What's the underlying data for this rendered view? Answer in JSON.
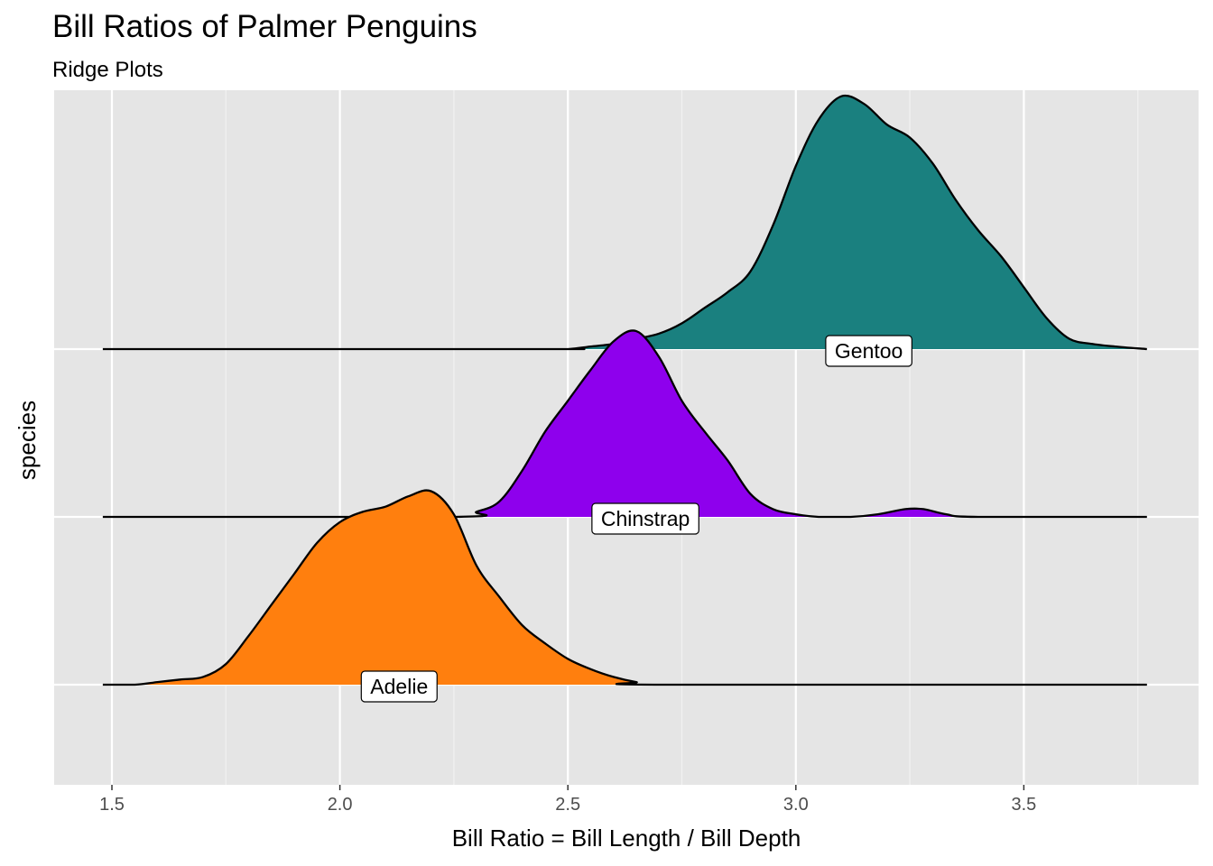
{
  "chart_data": {
    "type": "ridgeline",
    "title": "Bill Ratios of Palmer Penguins",
    "subtitle": "Ridge Plots",
    "xlabel": "Bill Ratio = Bill Length / Bill Depth",
    "ylabel": "species",
    "xlim": [
      1.37,
      3.89
    ],
    "x_ticks": [
      "1.5",
      "2.0",
      "2.5",
      "3.0",
      "3.5"
    ],
    "x_tick_values": [
      1.5,
      2.0,
      2.5,
      3.0,
      3.5
    ],
    "grid": true,
    "background": "#e5e5e5",
    "categories": [
      "Adelie",
      "Chinstrap",
      "Gentoo"
    ],
    "series": [
      {
        "name": "Adelie",
        "color": "#ff7f0e",
        "points": [
          [
            1.48,
            0.0
          ],
          [
            1.55,
            0.0
          ],
          [
            1.6,
            0.01
          ],
          [
            1.65,
            0.02
          ],
          [
            1.7,
            0.03
          ],
          [
            1.75,
            0.08
          ],
          [
            1.8,
            0.19
          ],
          [
            1.85,
            0.31
          ],
          [
            1.9,
            0.43
          ],
          [
            1.95,
            0.55
          ],
          [
            2.0,
            0.63
          ],
          [
            2.05,
            0.67
          ],
          [
            2.1,
            0.69
          ],
          [
            2.15,
            0.73
          ],
          [
            2.2,
            0.75
          ],
          [
            2.25,
            0.66
          ],
          [
            2.3,
            0.46
          ],
          [
            2.35,
            0.34
          ],
          [
            2.4,
            0.23
          ],
          [
            2.45,
            0.16
          ],
          [
            2.5,
            0.1
          ],
          [
            2.55,
            0.06
          ],
          [
            2.6,
            0.03
          ],
          [
            2.65,
            0.01
          ],
          [
            2.7,
            0.0
          ],
          [
            3.77,
            0.0
          ]
        ]
      },
      {
        "name": "Chinstrap",
        "color": "#8e00ed",
        "points": [
          [
            1.48,
            0.0
          ],
          [
            2.25,
            0.0
          ],
          [
            2.3,
            0.02
          ],
          [
            2.35,
            0.06
          ],
          [
            2.4,
            0.18
          ],
          [
            2.45,
            0.33
          ],
          [
            2.5,
            0.45
          ],
          [
            2.55,
            0.57
          ],
          [
            2.6,
            0.68
          ],
          [
            2.65,
            0.72
          ],
          [
            2.7,
            0.62
          ],
          [
            2.75,
            0.45
          ],
          [
            2.8,
            0.33
          ],
          [
            2.85,
            0.22
          ],
          [
            2.9,
            0.09
          ],
          [
            2.95,
            0.03
          ],
          [
            3.0,
            0.01
          ],
          [
            3.05,
            0.0
          ],
          [
            3.12,
            0.0
          ],
          [
            3.18,
            0.01
          ],
          [
            3.24,
            0.03
          ],
          [
            3.28,
            0.03
          ],
          [
            3.33,
            0.01
          ],
          [
            3.4,
            0.0
          ],
          [
            3.77,
            0.0
          ]
        ]
      },
      {
        "name": "Gentoo",
        "color": "#1a807f",
        "points": [
          [
            1.48,
            0.0
          ],
          [
            2.45,
            0.0
          ],
          [
            2.5,
            0.0
          ],
          [
            2.55,
            0.01
          ],
          [
            2.6,
            0.02
          ],
          [
            2.65,
            0.04
          ],
          [
            2.7,
            0.06
          ],
          [
            2.75,
            0.1
          ],
          [
            2.8,
            0.16
          ],
          [
            2.85,
            0.22
          ],
          [
            2.9,
            0.3
          ],
          [
            2.95,
            0.48
          ],
          [
            3.0,
            0.71
          ],
          [
            3.05,
            0.89
          ],
          [
            3.1,
            0.98
          ],
          [
            3.15,
            0.95
          ],
          [
            3.2,
            0.87
          ],
          [
            3.25,
            0.82
          ],
          [
            3.3,
            0.72
          ],
          [
            3.35,
            0.58
          ],
          [
            3.4,
            0.46
          ],
          [
            3.45,
            0.36
          ],
          [
            3.5,
            0.24
          ],
          [
            3.55,
            0.12
          ],
          [
            3.6,
            0.04
          ],
          [
            3.65,
            0.02
          ],
          [
            3.7,
            0.01
          ],
          [
            3.77,
            0.0
          ]
        ]
      }
    ],
    "labels": [
      {
        "text": "Adelie",
        "x": 2.13
      },
      {
        "text": "Chinstrap",
        "x": 2.67
      },
      {
        "text": "Gentoo",
        "x": 3.16
      }
    ]
  }
}
